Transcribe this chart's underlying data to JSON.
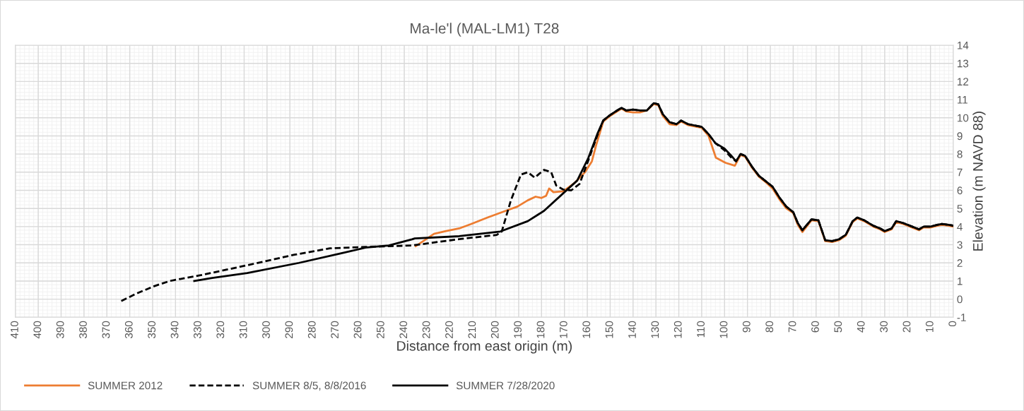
{
  "chart_data": {
    "type": "line",
    "title": "Ma-le'l (MAL-LM1) T28",
    "xlabel": "Distance from east origin (m)",
    "ylabel": "Elevation (m NAVD 88)",
    "xlim": [
      410,
      0
    ],
    "xticks": [
      410,
      400,
      390,
      380,
      370,
      360,
      350,
      340,
      330,
      320,
      310,
      300,
      290,
      280,
      270,
      260,
      250,
      240,
      230,
      220,
      210,
      200,
      190,
      180,
      170,
      160,
      150,
      140,
      130,
      120,
      110,
      100,
      90,
      80,
      70,
      60,
      50,
      40,
      30,
      20,
      10,
      0
    ],
    "ylim": [
      -1,
      14
    ],
    "yticks": [
      -1,
      0,
      1,
      2,
      3,
      4,
      5,
      6,
      7,
      8,
      9,
      10,
      11,
      12,
      13,
      14
    ],
    "grid": true,
    "legend": "bottom",
    "marker": "none",
    "series": [
      {
        "name": "SUMMER 2012",
        "color": "#ed7d31",
        "line_style": "solid",
        "x": [
          235,
          227,
          222,
          216,
          211,
          203.6,
          195,
          190.6,
          186,
          182.6,
          180,
          178,
          176.7,
          174.8,
          170.5,
          165.6,
          161,
          158,
          156,
          153,
          150,
          147,
          145,
          143,
          140,
          137,
          134,
          131,
          129,
          127,
          124,
          121,
          119,
          116,
          112,
          110,
          107,
          103.8,
          99.6,
          95.5,
          93,
          91,
          88,
          85,
          82,
          79,
          76,
          73,
          70,
          68,
          66,
          62,
          59,
          56,
          53,
          50,
          47,
          44,
          42,
          39,
          35,
          32,
          30,
          27,
          25,
          22,
          18,
          15,
          13,
          10,
          7,
          5,
          2,
          0
        ],
        "values": [
          2.92,
          3.6,
          3.75,
          3.9,
          4.13,
          4.5,
          4.9,
          5.1,
          5.45,
          5.65,
          5.58,
          5.7,
          6.1,
          5.9,
          5.95,
          6.4,
          7.0,
          7.6,
          8.55,
          9.8,
          10.1,
          10.35,
          10.5,
          10.35,
          10.3,
          10.3,
          10.4,
          10.75,
          10.7,
          10.1,
          9.65,
          9.6,
          9.8,
          9.6,
          9.5,
          9.45,
          9.0,
          7.8,
          7.52,
          7.36,
          7.95,
          7.85,
          7.25,
          6.75,
          6.45,
          6.1,
          5.5,
          5.0,
          4.75,
          4.1,
          3.7,
          4.35,
          4.3,
          3.2,
          3.15,
          3.25,
          3.5,
          4.25,
          4.45,
          4.3,
          4.0,
          3.85,
          3.7,
          3.85,
          4.25,
          4.15,
          3.95,
          3.8,
          3.95,
          3.95,
          4.05,
          4.1,
          4.05,
          4.0
        ]
      },
      {
        "name": "SUMMER 8/5, 8/8/2016",
        "color": "#000000",
        "line_style": "dashed",
        "x": [
          363.7,
          357,
          349.7,
          342.6,
          329,
          308.6,
          288,
          272.5,
          257,
          246.8,
          236.6,
          216,
          199.6,
          197.4,
          193.4,
          189,
          186,
          183,
          178.9,
          175.8,
          173.6,
          170.5,
          167,
          163.4,
          159.7,
          155.7,
          153,
          150,
          147,
          145,
          143,
          140,
          137,
          134,
          131,
          129,
          127,
          124,
          121,
          119,
          116,
          112,
          110,
          107,
          104,
          100,
          97,
          95,
          93,
          91,
          88,
          85,
          82,
          79,
          76,
          73,
          70,
          68,
          66,
          62,
          59,
          56,
          53,
          50,
          47,
          44,
          42,
          39,
          35,
          32,
          30,
          27,
          25,
          22,
          18,
          15,
          13,
          10,
          7,
          5,
          2,
          0
        ],
        "values": [
          -0.1,
          0.31,
          0.7,
          1.0,
          1.32,
          1.87,
          2.45,
          2.8,
          2.88,
          2.92,
          2.96,
          3.31,
          3.54,
          3.73,
          5.45,
          6.87,
          7.0,
          6.7,
          7.13,
          7.0,
          6.27,
          6.04,
          6.0,
          6.35,
          7.6,
          9.0,
          9.85,
          10.15,
          10.4,
          10.55,
          10.4,
          10.45,
          10.4,
          10.4,
          10.8,
          10.75,
          10.2,
          9.75,
          9.65,
          9.85,
          9.65,
          9.55,
          9.5,
          9.1,
          8.6,
          8.2,
          7.8,
          7.6,
          8.0,
          7.9,
          7.3,
          6.8,
          6.5,
          6.2,
          5.6,
          5.1,
          4.8,
          4.2,
          3.8,
          4.4,
          4.35,
          3.25,
          3.2,
          3.3,
          3.55,
          4.3,
          4.5,
          4.35,
          4.05,
          3.9,
          3.75,
          3.9,
          4.3,
          4.2,
          4.0,
          3.85,
          4.0,
          4.0,
          4.1,
          4.15,
          4.1,
          4.05
        ]
      },
      {
        "name": "SUMMER 7/28/2020",
        "color": "#000000",
        "line_style": "solid",
        "x": [
          331.8,
          324,
          308.6,
          286,
          267.5,
          257,
          246.8,
          236.6,
          235.4,
          216,
          198,
          186,
          178.9,
          170.5,
          164.4,
          159.5,
          155.7,
          153,
          150,
          147,
          145,
          143,
          140,
          137,
          134,
          131,
          129,
          127,
          124,
          121,
          119,
          116,
          112,
          110,
          107,
          104,
          100,
          97,
          95,
          93,
          91,
          88,
          85,
          82,
          79,
          76,
          73,
          70,
          68,
          66,
          62,
          59,
          56,
          53,
          50,
          47,
          44,
          42,
          39,
          35,
          32,
          30,
          27,
          25,
          22,
          18,
          15,
          13,
          10,
          7,
          5,
          2,
          0
        ],
        "values": [
          1.0,
          1.17,
          1.44,
          2.0,
          2.53,
          2.84,
          2.96,
          3.3,
          3.35,
          3.47,
          3.73,
          4.3,
          4.87,
          5.84,
          6.54,
          7.8,
          9.08,
          9.86,
          10.15,
          10.4,
          10.55,
          10.4,
          10.45,
          10.4,
          10.4,
          10.8,
          10.75,
          10.2,
          9.75,
          9.65,
          9.85,
          9.65,
          9.55,
          9.5,
          9.1,
          8.6,
          8.3,
          7.9,
          7.6,
          8.0,
          7.9,
          7.3,
          6.8,
          6.5,
          6.2,
          5.6,
          5.1,
          4.8,
          4.2,
          3.8,
          4.4,
          4.35,
          3.25,
          3.2,
          3.3,
          3.55,
          4.3,
          4.5,
          4.35,
          4.05,
          3.9,
          3.75,
          3.9,
          4.3,
          4.2,
          4.0,
          3.85,
          4.0,
          4.0,
          4.1,
          4.15,
          4.1,
          4.05
        ]
      }
    ]
  }
}
